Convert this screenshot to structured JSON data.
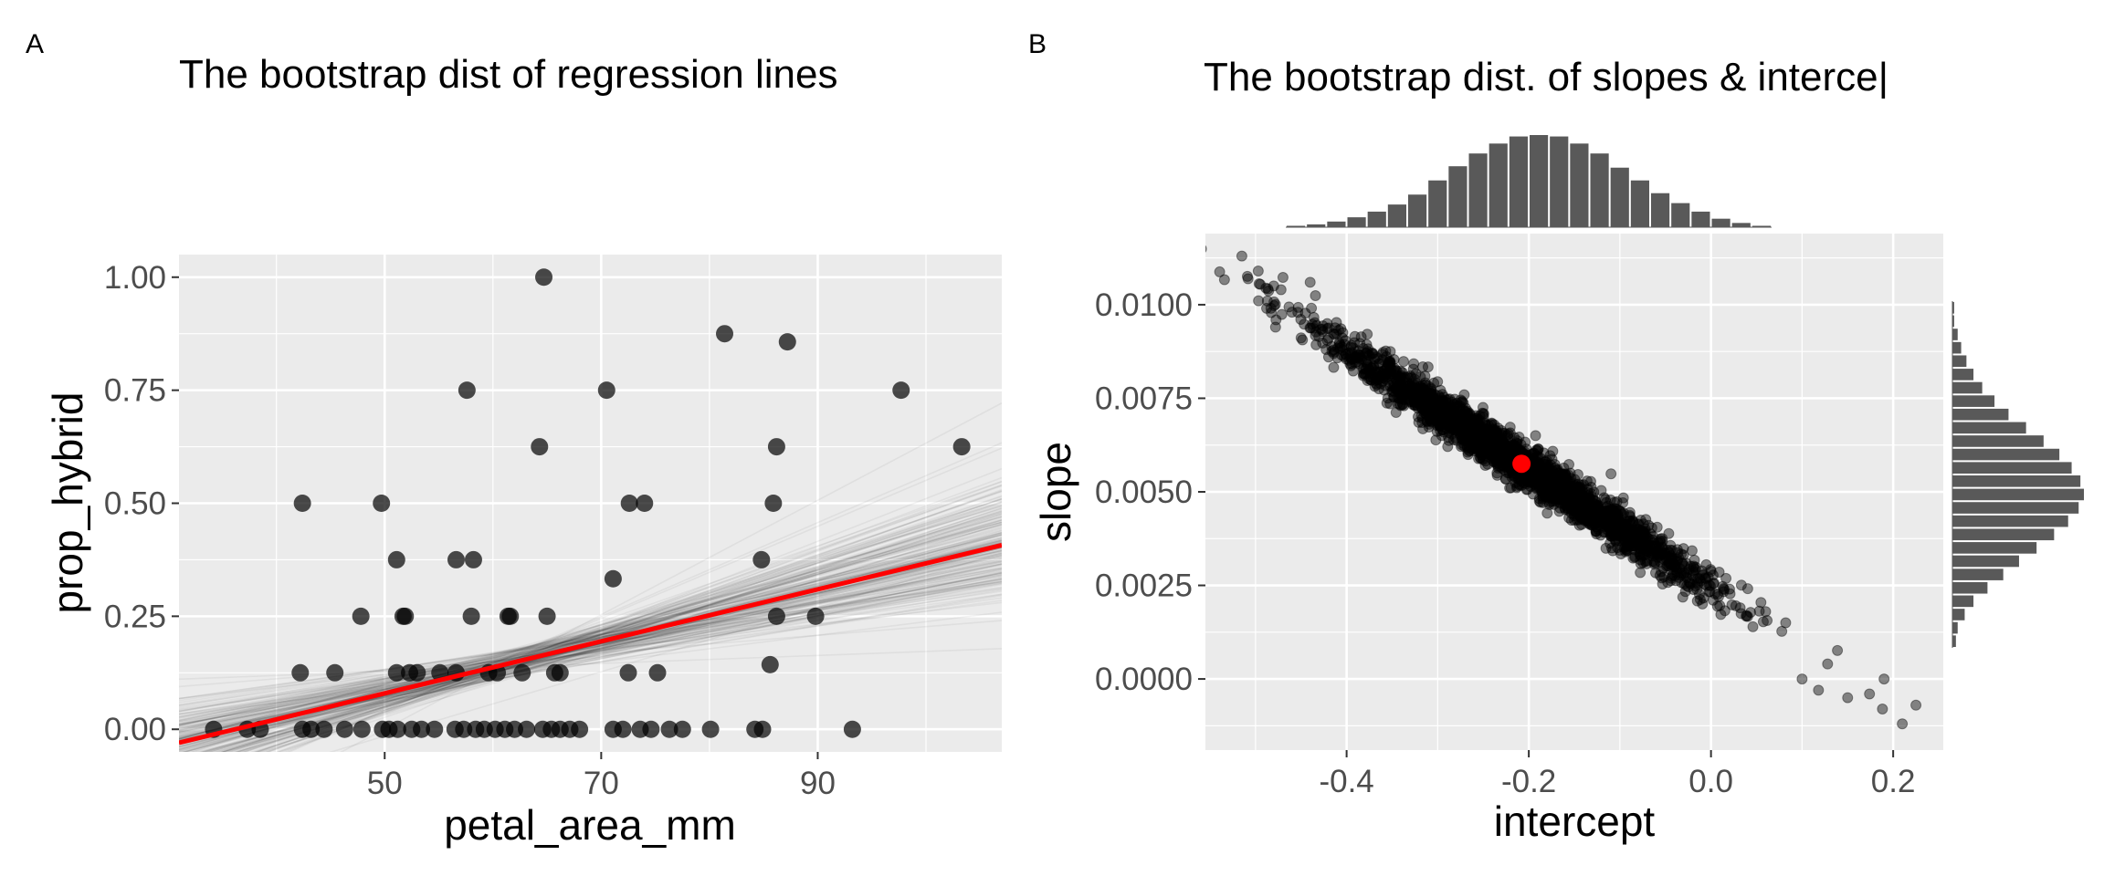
{
  "panels": {
    "a": {
      "tag": "A",
      "title": "The bootstrap dist of regression lines",
      "xlabel": "petal_area_mm",
      "ylabel": "prop_hybrid"
    },
    "b": {
      "tag": "B",
      "title": "The bootstrap dist. of slopes & interce|",
      "xlabel": "intercept",
      "ylabel": "slope"
    }
  },
  "colors": {
    "panel_bg": "#ebebeb",
    "grid": "#ffffff",
    "points": "#000000",
    "fit_line": "#ff0000",
    "histogram": "#595959"
  },
  "chart_data": [
    {
      "type": "scatter",
      "panel": "A",
      "title": "The bootstrap dist of regression lines",
      "xlabel": "petal_area_mm",
      "ylabel": "prop_hybrid",
      "xlim": [
        31,
        107
      ],
      "ylim": [
        -0.05,
        1.05
      ],
      "x_ticks": [
        50,
        70,
        90
      ],
      "x_tick_labels": [
        "50",
        "70",
        "90"
      ],
      "y_ticks": [
        0,
        0.25,
        0.5,
        0.75,
        1.0
      ],
      "y_tick_labels": [
        "0.00",
        "0.25",
        "0.50",
        "0.75",
        "1.00"
      ],
      "grid": true,
      "points": [
        [
          64.7,
          1.0
        ],
        [
          81.4,
          0.875
        ],
        [
          87.2,
          0.857
        ],
        [
          57.6,
          0.75
        ],
        [
          70.5,
          0.75
        ],
        [
          97.7,
          0.75
        ],
        [
          64.3,
          0.625
        ],
        [
          86.2,
          0.625
        ],
        [
          103.3,
          0.625
        ],
        [
          42.4,
          0.5
        ],
        [
          49.7,
          0.5
        ],
        [
          72.6,
          0.5
        ],
        [
          74.0,
          0.5
        ],
        [
          85.9,
          0.5
        ],
        [
          51.1,
          0.375
        ],
        [
          56.6,
          0.375
        ],
        [
          58.2,
          0.375
        ],
        [
          84.8,
          0.375
        ],
        [
          71.1,
          0.333
        ],
        [
          47.8,
          0.25
        ],
        [
          51.7,
          0.25
        ],
        [
          51.9,
          0.25
        ],
        [
          58.0,
          0.25
        ],
        [
          61.4,
          0.25
        ],
        [
          61.6,
          0.25
        ],
        [
          65.0,
          0.25
        ],
        [
          86.2,
          0.25
        ],
        [
          89.8,
          0.25
        ],
        [
          85.6,
          0.143
        ],
        [
          42.2,
          0.125
        ],
        [
          45.4,
          0.125
        ],
        [
          51.1,
          0.125
        ],
        [
          52.3,
          0.125
        ],
        [
          53.0,
          0.125
        ],
        [
          55.1,
          0.125
        ],
        [
          56.6,
          0.125
        ],
        [
          59.6,
          0.125
        ],
        [
          60.4,
          0.125
        ],
        [
          62.7,
          0.125
        ],
        [
          65.7,
          0.125
        ],
        [
          66.2,
          0.125
        ],
        [
          72.5,
          0.125
        ],
        [
          75.2,
          0.125
        ],
        [
          34.2,
          0
        ],
        [
          37.3,
          0
        ],
        [
          38.5,
          0
        ],
        [
          42.4,
          0
        ],
        [
          43.2,
          0
        ],
        [
          44.4,
          0
        ],
        [
          46.3,
          0
        ],
        [
          47.9,
          0
        ],
        [
          49.8,
          0
        ],
        [
          50.4,
          0
        ],
        [
          51.2,
          0
        ],
        [
          52.5,
          0
        ],
        [
          53.4,
          0
        ],
        [
          54.6,
          0
        ],
        [
          56.5,
          0
        ],
        [
          57.3,
          0
        ],
        [
          58.4,
          0
        ],
        [
          59.2,
          0
        ],
        [
          60.2,
          0
        ],
        [
          61.1,
          0
        ],
        [
          62.0,
          0
        ],
        [
          63.1,
          0
        ],
        [
          64.6,
          0
        ],
        [
          65.4,
          0
        ],
        [
          66.2,
          0
        ],
        [
          67.1,
          0
        ],
        [
          68.0,
          0
        ],
        [
          71.1,
          0
        ],
        [
          72.0,
          0
        ],
        [
          73.6,
          0
        ],
        [
          74.6,
          0
        ],
        [
          76.3,
          0
        ],
        [
          77.5,
          0
        ],
        [
          80.1,
          0
        ],
        [
          84.2,
          0
        ],
        [
          84.9,
          0
        ],
        [
          93.2,
          0
        ]
      ],
      "fit_line": {
        "intercept": -0.208,
        "slope": 0.00575
      },
      "bootstrap_lines": {
        "count": 200,
        "intercept_mean": -0.208,
        "slope_mean": 0.00575,
        "intercept_sd": 0.105,
        "slope_sd": 0.0017
      }
    },
    {
      "type": "scatter",
      "panel": "B",
      "title": "The bootstrap dist. of slopes & interce|",
      "xlabel": "intercept",
      "ylabel": "slope",
      "xlim": [
        -0.555,
        0.255
      ],
      "ylim": [
        -0.0019,
        0.0119
      ],
      "x_ticks": [
        -0.4,
        -0.2,
        0.0,
        0.2
      ],
      "x_tick_labels": [
        "-0.4",
        "-0.2",
        "0.0",
        "0.2"
      ],
      "y_ticks": [
        0.0,
        0.0025,
        0.005,
        0.0075,
        0.01
      ],
      "y_tick_labels": [
        "0.0000",
        "0.0025",
        "0.0050",
        "0.0075",
        "0.0100"
      ],
      "grid": true,
      "point_cloud": {
        "count": 2500,
        "intercept_mean": -0.208,
        "slope_mean": 0.00575,
        "intercept_sd": 0.105,
        "slope_sd": 0.0017,
        "correlation": -0.985
      },
      "outlier_points": [
        [
          -0.515,
          0.0113
        ],
        [
          -0.497,
          0.0109
        ],
        [
          -0.48,
          0.0105
        ],
        [
          -0.487,
          0.0101
        ],
        [
          -0.472,
          0.0104
        ],
        [
          -0.478,
          0.0094
        ],
        [
          -0.44,
          0.0106
        ],
        [
          -0.46,
          0.0098
        ],
        [
          0.19,
          0.0
        ],
        [
          0.21,
          -0.0012
        ],
        [
          0.225,
          -0.0007
        ],
        [
          0.174,
          -0.0004
        ],
        [
          0.15,
          -0.0005
        ],
        [
          0.128,
          0.0004
        ],
        [
          0.118,
          -0.0003
        ],
        [
          0.1,
          0.0
        ],
        [
          0.082,
          0.0015
        ],
        [
          0.06,
          0.0018
        ]
      ],
      "highlight_point": {
        "intercept": -0.208,
        "slope": 0.00575,
        "color": "#ff0000"
      },
      "marginal_histograms": {
        "intercept_counts": [
          1,
          2,
          4,
          7,
          11,
          16,
          23,
          33,
          43,
          52,
          59,
          64,
          65,
          64,
          59,
          52,
          42,
          33,
          24,
          17,
          11,
          6,
          3,
          1
        ],
        "slope_counts": [
          1,
          1,
          3,
          5,
          8,
          12,
          17,
          24,
          32,
          42,
          52,
          61,
          68,
          73,
          75,
          72,
          66,
          58,
          48,
          38,
          29,
          20,
          12,
          7,
          3,
          2
        ]
      }
    }
  ]
}
